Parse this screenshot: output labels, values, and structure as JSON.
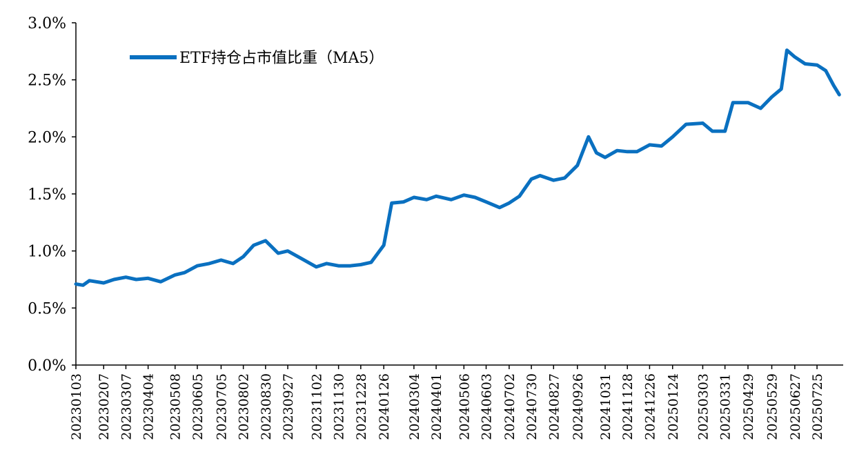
{
  "chart_data": {
    "type": "line",
    "title": "",
    "xlabel": "",
    "ylabel": "",
    "ylim": [
      0,
      3.0
    ],
    "yticks": [
      "0.0%",
      "0.5%",
      "1.0%",
      "1.5%",
      "2.0%",
      "2.5%",
      "3.0%"
    ],
    "xtick_labels": [
      "20230103",
      "20230207",
      "20230307",
      "20230404",
      "20230508",
      "20230605",
      "20230705",
      "20230802",
      "20230830",
      "20230927",
      "20231102",
      "20231130",
      "20231228",
      "20240126",
      "20240304",
      "20240401",
      "20240506",
      "20240603",
      "20240702",
      "20240730",
      "20240827",
      "20240926",
      "20241031",
      "20241128",
      "20241226",
      "20250124",
      "20250303",
      "20250331",
      "20250429",
      "20250529",
      "20250627",
      "20250725"
    ],
    "legend": {
      "placement": "top-left"
    },
    "grid": false,
    "colors": {
      "series": "#0a70c0",
      "axis": "#000000"
    },
    "series": [
      {
        "name": "ETF持仓占市值比重（MA5）",
        "points": [
          [
            "20230103",
            0.71
          ],
          [
            "20230112",
            0.7
          ],
          [
            "20230120",
            0.74
          ],
          [
            "20230207",
            0.72
          ],
          [
            "20230220",
            0.75
          ],
          [
            "20230307",
            0.77
          ],
          [
            "20230320",
            0.75
          ],
          [
            "20230404",
            0.76
          ],
          [
            "20230420",
            0.73
          ],
          [
            "20230508",
            0.79
          ],
          [
            "20230520",
            0.81
          ],
          [
            "20230605",
            0.87
          ],
          [
            "20230620",
            0.89
          ],
          [
            "20230705",
            0.92
          ],
          [
            "20230720",
            0.89
          ],
          [
            "20230802",
            0.95
          ],
          [
            "20230815",
            1.05
          ],
          [
            "20230830",
            1.09
          ],
          [
            "20230915",
            0.98
          ],
          [
            "20230927",
            1.0
          ],
          [
            "20231015",
            0.93
          ],
          [
            "20231102",
            0.86
          ],
          [
            "20231115",
            0.89
          ],
          [
            "20231130",
            0.87
          ],
          [
            "20231215",
            0.87
          ],
          [
            "20231228",
            0.88
          ],
          [
            "20240110",
            0.9
          ],
          [
            "20240126",
            1.05
          ],
          [
            "20240205",
            1.42
          ],
          [
            "20240220",
            1.43
          ],
          [
            "20240304",
            1.47
          ],
          [
            "20240320",
            1.45
          ],
          [
            "20240401",
            1.48
          ],
          [
            "20240420",
            1.45
          ],
          [
            "20240506",
            1.49
          ],
          [
            "20240520",
            1.47
          ],
          [
            "20240603",
            1.43
          ],
          [
            "20240620",
            1.38
          ],
          [
            "20240702",
            1.42
          ],
          [
            "20240715",
            1.48
          ],
          [
            "20240730",
            1.63
          ],
          [
            "20240810",
            1.66
          ],
          [
            "20240827",
            1.62
          ],
          [
            "20240910",
            1.64
          ],
          [
            "20240926",
            1.75
          ],
          [
            "20241010",
            2.0
          ],
          [
            "20241020",
            1.86
          ],
          [
            "20241031",
            1.82
          ],
          [
            "20241115",
            1.88
          ],
          [
            "20241128",
            1.87
          ],
          [
            "20241210",
            1.87
          ],
          [
            "20241226",
            1.93
          ],
          [
            "20250110",
            1.92
          ],
          [
            "20250124",
            2.0
          ],
          [
            "20250210",
            2.11
          ],
          [
            "20250303",
            2.12
          ],
          [
            "20250315",
            2.05
          ],
          [
            "20250331",
            2.05
          ],
          [
            "20250410",
            2.3
          ],
          [
            "20250429",
            2.3
          ],
          [
            "20250515",
            2.25
          ],
          [
            "20250529",
            2.35
          ],
          [
            "20250610",
            2.42
          ],
          [
            "20250617",
            2.76
          ],
          [
            "20250627",
            2.7
          ],
          [
            "20250710",
            2.64
          ],
          [
            "20250725",
            2.63
          ],
          [
            "20250805",
            2.58
          ],
          [
            "20250815",
            2.45
          ],
          [
            "20250822",
            2.37
          ]
        ]
      }
    ]
  }
}
